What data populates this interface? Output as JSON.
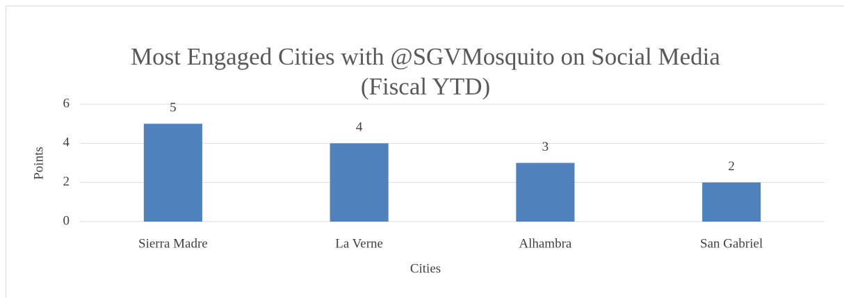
{
  "chart_data": {
    "type": "bar",
    "title": [
      "Most Engaged Cities with @SGVMosquito on Social Media",
      "(Fiscal YTD)"
    ],
    "x_label": "Cities",
    "y_label": "Points",
    "categories": [
      "Sierra Madre",
      "La Verne",
      "Alhambra",
      "San Gabriel"
    ],
    "values": [
      5,
      4,
      3,
      2
    ],
    "color": "#4f81bd",
    "ylim": [
      0,
      6
    ],
    "yticks": [
      0,
      2,
      4,
      6
    ],
    "grid": true
  }
}
